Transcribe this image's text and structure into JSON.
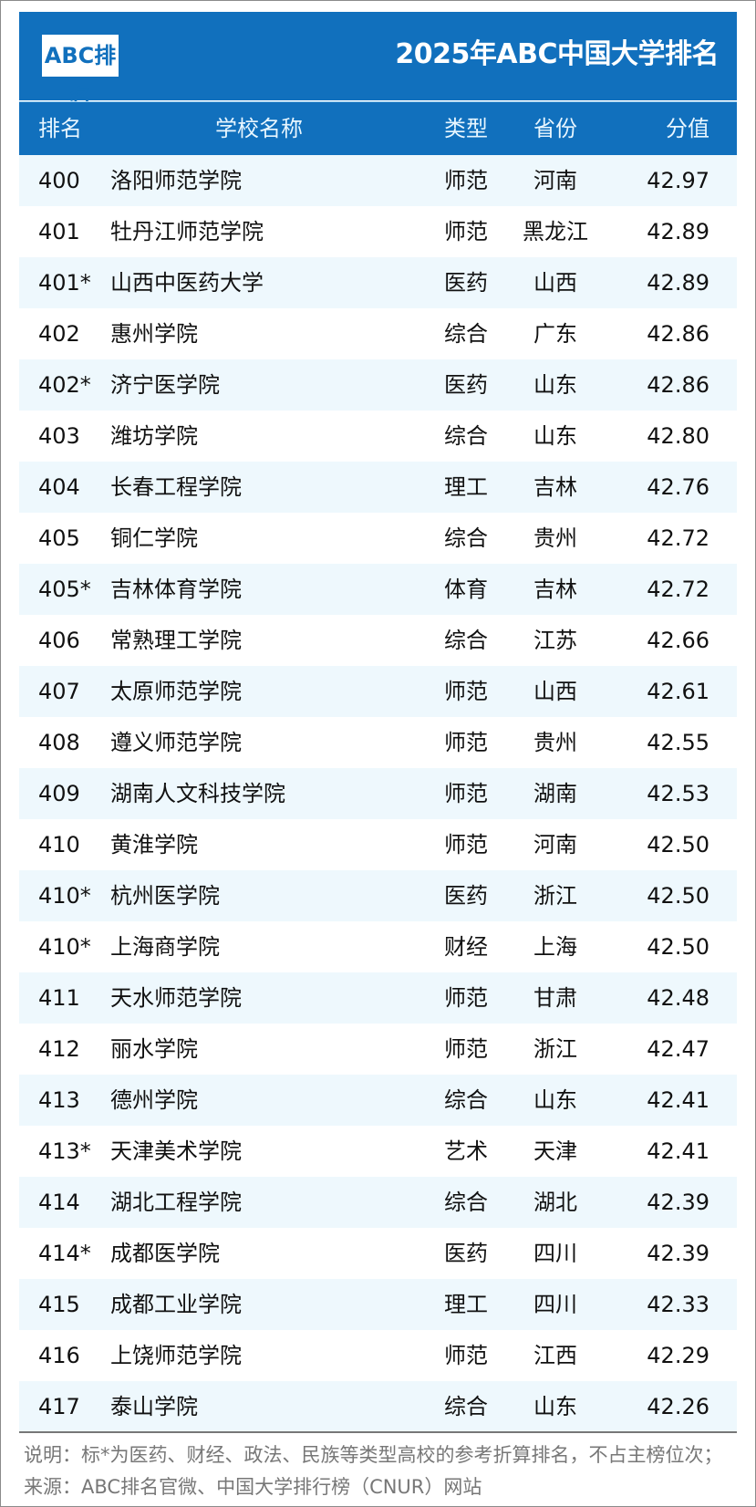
{
  "header": {
    "logo": "ABC排名",
    "title": "2025年ABC中国大学排名"
  },
  "columns": {
    "rank": "排名",
    "name": "学校名称",
    "type": "类型",
    "province": "省份",
    "score": "分值"
  },
  "rows": [
    {
      "rank": "400",
      "name": "洛阳师范学院",
      "type": "师范",
      "province": "河南",
      "score": "42.97"
    },
    {
      "rank": "401",
      "name": "牡丹江师范学院",
      "type": "师范",
      "province": "黑龙江",
      "score": "42.89"
    },
    {
      "rank": "401*",
      "name": "山西中医药大学",
      "type": "医药",
      "province": "山西",
      "score": "42.89"
    },
    {
      "rank": "402",
      "name": "惠州学院",
      "type": "综合",
      "province": "广东",
      "score": "42.86"
    },
    {
      "rank": "402*",
      "name": "济宁医学院",
      "type": "医药",
      "province": "山东",
      "score": "42.86"
    },
    {
      "rank": "403",
      "name": "潍坊学院",
      "type": "综合",
      "province": "山东",
      "score": "42.80"
    },
    {
      "rank": "404",
      "name": "长春工程学院",
      "type": "理工",
      "province": "吉林",
      "score": "42.76"
    },
    {
      "rank": "405",
      "name": "铜仁学院",
      "type": "综合",
      "province": "贵州",
      "score": "42.72"
    },
    {
      "rank": "405*",
      "name": "吉林体育学院",
      "type": "体育",
      "province": "吉林",
      "score": "42.72"
    },
    {
      "rank": "406",
      "name": "常熟理工学院",
      "type": "综合",
      "province": "江苏",
      "score": "42.66"
    },
    {
      "rank": "407",
      "name": "太原师范学院",
      "type": "师范",
      "province": "山西",
      "score": "42.61"
    },
    {
      "rank": "408",
      "name": "遵义师范学院",
      "type": "师范",
      "province": "贵州",
      "score": "42.55"
    },
    {
      "rank": "409",
      "name": "湖南人文科技学院",
      "type": "师范",
      "province": "湖南",
      "score": "42.53"
    },
    {
      "rank": "410",
      "name": "黄淮学院",
      "type": "师范",
      "province": "河南",
      "score": "42.50"
    },
    {
      "rank": "410*",
      "name": "杭州医学院",
      "type": "医药",
      "province": "浙江",
      "score": "42.50"
    },
    {
      "rank": "410*",
      "name": "上海商学院",
      "type": "财经",
      "province": "上海",
      "score": "42.50"
    },
    {
      "rank": "411",
      "name": "天水师范学院",
      "type": "师范",
      "province": "甘肃",
      "score": "42.48"
    },
    {
      "rank": "412",
      "name": "丽水学院",
      "type": "师范",
      "province": "浙江",
      "score": "42.47"
    },
    {
      "rank": "413",
      "name": "德州学院",
      "type": "综合",
      "province": "山东",
      "score": "42.41"
    },
    {
      "rank": "413*",
      "name": "天津美术学院",
      "type": "艺术",
      "province": "天津",
      "score": "42.41"
    },
    {
      "rank": "414",
      "name": "湖北工程学院",
      "type": "综合",
      "province": "湖北",
      "score": "42.39"
    },
    {
      "rank": "414*",
      "name": "成都医学院",
      "type": "医药",
      "province": "四川",
      "score": "42.39"
    },
    {
      "rank": "415",
      "name": "成都工业学院",
      "type": "理工",
      "province": "四川",
      "score": "42.33"
    },
    {
      "rank": "416",
      "name": "上饶师范学院",
      "type": "师范",
      "province": "江西",
      "score": "42.29"
    },
    {
      "rank": "417",
      "name": "泰山学院",
      "type": "综合",
      "province": "山东",
      "score": "42.26"
    }
  ],
  "footer": {
    "note": "说明：标*为医药、财经、政法、民族等类型高校的参考折算排名，不占主榜位次；来源：ABC排名官微、中国大学排行榜（CNUR）网站"
  },
  "colors": {
    "brand": "#1170bd",
    "row_shade": "#eef8fd"
  }
}
